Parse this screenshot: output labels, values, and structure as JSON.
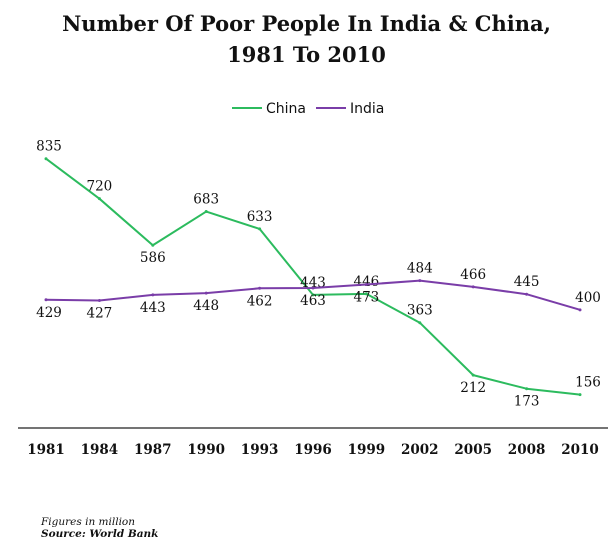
{
  "chart_data": {
    "type": "line",
    "title_lines": [
      "Number Of Poor People In India & China,",
      "1981 To 2010"
    ],
    "x": [
      "1981",
      "1984",
      "1987",
      "1990",
      "1993",
      "1996",
      "1999",
      "2002",
      "2005",
      "2008",
      "2010"
    ],
    "series": [
      {
        "name": "China",
        "color": "#2cbb5e",
        "values": [
          835,
          720,
          586,
          683,
          633,
          443,
          446,
          363,
          212,
          173,
          156
        ]
      },
      {
        "name": "India",
        "color": "#7a3da8",
        "values": [
          429,
          427,
          443,
          448,
          462,
          463,
          473,
          484,
          466,
          445,
          400
        ]
      }
    ],
    "legend_position": "top-center",
    "grid": false,
    "ylim": [
      80,
      840
    ]
  },
  "footnote": "Figures in million",
  "source": "Source: World Bank"
}
